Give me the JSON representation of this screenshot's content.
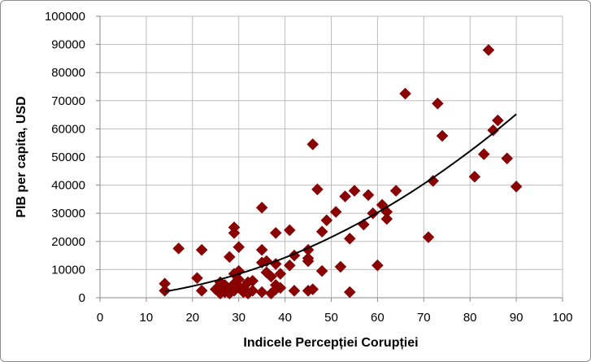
{
  "chart_data": {
    "type": "scatter",
    "title": "",
    "xlabel": "Indicele Percepției Corupției",
    "ylabel": "PIB per capita, USD",
    "xlim": [
      0,
      100
    ],
    "ylim": [
      0,
      100000
    ],
    "x_ticks": [
      "0",
      "10",
      "20",
      "30",
      "40",
      "50",
      "60",
      "70",
      "80",
      "90",
      "100"
    ],
    "y_ticks": [
      "0",
      "10000",
      "20000",
      "30000",
      "40000",
      "50000",
      "60000",
      "70000",
      "80000",
      "90000",
      "100000"
    ],
    "grid": true,
    "legend": "none",
    "marker": "diamond",
    "point_color": "#8b0000",
    "trendline": {
      "type": "polynomial",
      "color": "#000000",
      "x_range": [
        14,
        90
      ],
      "y_range": [
        2000,
        65000
      ]
    },
    "points": [
      {
        "x": 14,
        "y": 5000
      },
      {
        "x": 14,
        "y": 2500
      },
      {
        "x": 17,
        "y": 17500
      },
      {
        "x": 21,
        "y": 7000
      },
      {
        "x": 22,
        "y": 17000
      },
      {
        "x": 22,
        "y": 2500
      },
      {
        "x": 25,
        "y": 3000
      },
      {
        "x": 26,
        "y": 5500
      },
      {
        "x": 26,
        "y": 1500
      },
      {
        "x": 26,
        "y": 3500
      },
      {
        "x": 27,
        "y": 2000
      },
      {
        "x": 27,
        "y": 4500
      },
      {
        "x": 28,
        "y": 14500
      },
      {
        "x": 28,
        "y": 1500
      },
      {
        "x": 28,
        "y": 3000
      },
      {
        "x": 29,
        "y": 25000
      },
      {
        "x": 29,
        "y": 23000
      },
      {
        "x": 29,
        "y": 8500
      },
      {
        "x": 29,
        "y": 5000
      },
      {
        "x": 29,
        "y": 2500
      },
      {
        "x": 30,
        "y": 18000
      },
      {
        "x": 30,
        "y": 9500
      },
      {
        "x": 30,
        "y": 6500
      },
      {
        "x": 30,
        "y": 4000
      },
      {
        "x": 31,
        "y": 2000
      },
      {
        "x": 31,
        "y": 3500
      },
      {
        "x": 32,
        "y": 5500
      },
      {
        "x": 32,
        "y": 1500
      },
      {
        "x": 33,
        "y": 6000
      },
      {
        "x": 33,
        "y": 2500
      },
      {
        "x": 35,
        "y": 32000
      },
      {
        "x": 35,
        "y": 17000
      },
      {
        "x": 35,
        "y": 12500
      },
      {
        "x": 35,
        "y": 2000
      },
      {
        "x": 36,
        "y": 13000
      },
      {
        "x": 36,
        "y": 9000
      },
      {
        "x": 37,
        "y": 7500
      },
      {
        "x": 37,
        "y": 1500
      },
      {
        "x": 38,
        "y": 23000
      },
      {
        "x": 38,
        "y": 12000
      },
      {
        "x": 38,
        "y": 4500
      },
      {
        "x": 38,
        "y": 3000
      },
      {
        "x": 39,
        "y": 8500
      },
      {
        "x": 39,
        "y": 3500
      },
      {
        "x": 41,
        "y": 24000
      },
      {
        "x": 41,
        "y": 11500
      },
      {
        "x": 42,
        "y": 15000
      },
      {
        "x": 42,
        "y": 2500
      },
      {
        "x": 45,
        "y": 17000
      },
      {
        "x": 45,
        "y": 14000
      },
      {
        "x": 45,
        "y": 13000
      },
      {
        "x": 45,
        "y": 2500
      },
      {
        "x": 46,
        "y": 54500
      },
      {
        "x": 46,
        "y": 3000
      },
      {
        "x": 47,
        "y": 38500
      },
      {
        "x": 48,
        "y": 23500
      },
      {
        "x": 48,
        "y": 9500
      },
      {
        "x": 49,
        "y": 27500
      },
      {
        "x": 51,
        "y": 30500
      },
      {
        "x": 52,
        "y": 11000
      },
      {
        "x": 53,
        "y": 36000
      },
      {
        "x": 54,
        "y": 21000
      },
      {
        "x": 54,
        "y": 2000
      },
      {
        "x": 55,
        "y": 38000
      },
      {
        "x": 57,
        "y": 26000
      },
      {
        "x": 58,
        "y": 36500
      },
      {
        "x": 59,
        "y": 30000
      },
      {
        "x": 60,
        "y": 11500
      },
      {
        "x": 61,
        "y": 33000
      },
      {
        "x": 62,
        "y": 30500
      },
      {
        "x": 62,
        "y": 28000
      },
      {
        "x": 64,
        "y": 38000
      },
      {
        "x": 66,
        "y": 72500
      },
      {
        "x": 71,
        "y": 21500
      },
      {
        "x": 72,
        "y": 41500
      },
      {
        "x": 73,
        "y": 69000
      },
      {
        "x": 74,
        "y": 57500
      },
      {
        "x": 81,
        "y": 43000
      },
      {
        "x": 83,
        "y": 51000
      },
      {
        "x": 84,
        "y": 88000
      },
      {
        "x": 85,
        "y": 59500
      },
      {
        "x": 86,
        "y": 63000
      },
      {
        "x": 88,
        "y": 49500
      },
      {
        "x": 90,
        "y": 39500
      }
    ]
  }
}
